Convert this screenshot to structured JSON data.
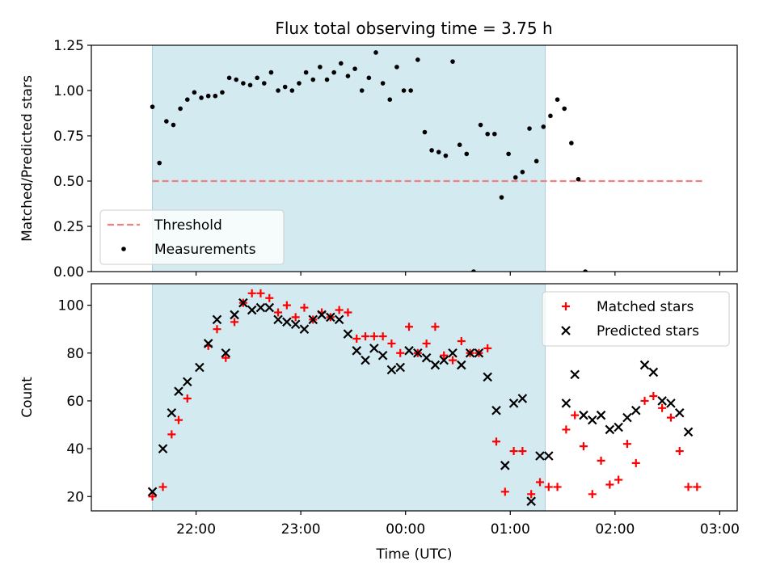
{
  "chart_data": [
    {
      "type": "scatter",
      "title": "Flux total observing time = 3.75 h",
      "xlabel": "",
      "ylabel": "Matched/Predicted stars",
      "ylim": [
        0.0,
        1.25
      ],
      "yticks": [
        "0.00",
        "0.25",
        "0.50",
        "0.75",
        "1.00",
        "1.25"
      ],
      "xticks": [
        "22:00",
        "23:00",
        "00:00",
        "01:00",
        "02:00",
        "03:00"
      ],
      "shaded_span": {
        "start": "21:35",
        "end": "01:20",
        "color": "#d3eaf1"
      },
      "threshold": {
        "name": "Threshold",
        "value": 0.5,
        "start": "21:35",
        "end": "02:50",
        "color": "#f08080"
      },
      "legend": {
        "position": "lower-left",
        "entries": [
          "Threshold",
          "Measurements"
        ]
      },
      "series": [
        {
          "name": "Measurements",
          "marker": "dot",
          "color": "#000000",
          "points": [
            [
              "21:35",
              0.91
            ],
            [
              "21:39",
              0.6
            ],
            [
              "21:43",
              0.83
            ],
            [
              "21:47",
              0.81
            ],
            [
              "21:51",
              0.9
            ],
            [
              "21:55",
              0.95
            ],
            [
              "21:59",
              0.99
            ],
            [
              "22:03",
              0.96
            ],
            [
              "22:07",
              0.97
            ],
            [
              "22:11",
              0.97
            ],
            [
              "22:15",
              0.99
            ],
            [
              "22:19",
              1.07
            ],
            [
              "22:23",
              1.06
            ],
            [
              "22:27",
              1.04
            ],
            [
              "22:31",
              1.03
            ],
            [
              "22:35",
              1.07
            ],
            [
              "22:39",
              1.04
            ],
            [
              "22:43",
              1.1
            ],
            [
              "22:47",
              1.0
            ],
            [
              "22:51",
              1.02
            ],
            [
              "22:55",
              1.0
            ],
            [
              "22:59",
              1.04
            ],
            [
              "23:03",
              1.1
            ],
            [
              "23:07",
              1.06
            ],
            [
              "23:11",
              1.13
            ],
            [
              "23:15",
              1.06
            ],
            [
              "23:19",
              1.1
            ],
            [
              "23:23",
              1.15
            ],
            [
              "23:27",
              1.08
            ],
            [
              "23:31",
              1.12
            ],
            [
              "23:35",
              1.0
            ],
            [
              "23:39",
              1.07
            ],
            [
              "23:43",
              1.21
            ],
            [
              "23:47",
              1.04
            ],
            [
              "23:51",
              0.95
            ],
            [
              "23:55",
              1.13
            ],
            [
              "23:59",
              1.0
            ],
            [
              "00:03",
              1.0
            ],
            [
              "00:07",
              1.17
            ],
            [
              "00:11",
              0.77
            ],
            [
              "00:15",
              0.67
            ],
            [
              "00:19",
              0.66
            ],
            [
              "00:23",
              0.64
            ],
            [
              "00:27",
              1.16
            ],
            [
              "00:31",
              0.7
            ],
            [
              "00:35",
              0.65
            ],
            [
              "00:39",
              0.0
            ],
            [
              "00:43",
              0.81
            ],
            [
              "00:47",
              0.76
            ],
            [
              "00:51",
              0.76
            ],
            [
              "00:55",
              0.41
            ],
            [
              "00:59",
              0.65
            ],
            [
              "01:03",
              0.52
            ],
            [
              "01:07",
              0.55
            ],
            [
              "01:11",
              0.79
            ],
            [
              "01:15",
              0.61
            ],
            [
              "01:19",
              0.8
            ],
            [
              "01:23",
              0.86
            ],
            [
              "01:27",
              0.95
            ],
            [
              "01:31",
              0.9
            ],
            [
              "01:35",
              0.71
            ],
            [
              "01:39",
              0.51
            ],
            [
              "01:43",
              0.0
            ]
          ]
        }
      ]
    },
    {
      "type": "scatter",
      "title": "",
      "xlabel": "Time (UTC)",
      "ylabel": "Count",
      "ylim": [
        14,
        109
      ],
      "yticks": [
        "20",
        "40",
        "60",
        "80",
        "100"
      ],
      "xticks": [
        "22:00",
        "23:00",
        "00:00",
        "01:00",
        "02:00",
        "03:00"
      ],
      "shaded_span": {
        "start": "21:35",
        "end": "01:20",
        "color": "#d3eaf1"
      },
      "legend": {
        "position": "upper-right",
        "entries": [
          "Matched stars",
          "Predicted stars"
        ]
      },
      "series": [
        {
          "name": "Matched stars",
          "marker": "plus",
          "color": "#ff0000",
          "points": [
            [
              "21:35",
              20
            ],
            [
              "21:41",
              24
            ],
            [
              "21:46",
              46
            ],
            [
              "21:50",
              52
            ],
            [
              "21:55",
              61
            ],
            [
              "22:07",
              83
            ],
            [
              "22:12",
              90
            ],
            [
              "22:17",
              78
            ],
            [
              "22:22",
              93
            ],
            [
              "22:27",
              101
            ],
            [
              "22:32",
              105
            ],
            [
              "22:37",
              105
            ],
            [
              "22:42",
              103
            ],
            [
              "22:47",
              97
            ],
            [
              "22:52",
              100
            ],
            [
              "22:57",
              95
            ],
            [
              "23:02",
              99
            ],
            [
              "23:07",
              94
            ],
            [
              "23:12",
              97
            ],
            [
              "23:17",
              95
            ],
            [
              "23:22",
              98
            ],
            [
              "23:27",
              97
            ],
            [
              "23:32",
              86
            ],
            [
              "23:37",
              87
            ],
            [
              "23:42",
              87
            ],
            [
              "23:47",
              87
            ],
            [
              "23:52",
              84
            ],
            [
              "23:57",
              80
            ],
            [
              "00:02",
              91
            ],
            [
              "00:07",
              80
            ],
            [
              "00:12",
              84
            ],
            [
              "00:17",
              91
            ],
            [
              "00:22",
              79
            ],
            [
              "00:27",
              77
            ],
            [
              "00:32",
              85
            ],
            [
              "00:37",
              80
            ],
            [
              "00:42",
              80
            ],
            [
              "00:47",
              82
            ],
            [
              "00:52",
              43
            ],
            [
              "00:57",
              22
            ],
            [
              "01:02",
              39
            ],
            [
              "01:07",
              39
            ],
            [
              "01:12",
              21
            ],
            [
              "01:17",
              26
            ],
            [
              "01:22",
              24
            ],
            [
              "01:27",
              24
            ],
            [
              "01:32",
              48
            ],
            [
              "01:37",
              54
            ],
            [
              "01:42",
              41
            ],
            [
              "01:47",
              21
            ],
            [
              "01:52",
              35
            ],
            [
              "01:57",
              25
            ],
            [
              "02:02",
              27
            ],
            [
              "02:07",
              42
            ],
            [
              "02:12",
              34
            ],
            [
              "02:17",
              60
            ],
            [
              "02:22",
              62
            ],
            [
              "02:27",
              57
            ],
            [
              "02:32",
              53
            ],
            [
              "02:37",
              39
            ],
            [
              "02:42",
              24
            ],
            [
              "02:47",
              24
            ]
          ]
        },
        {
          "name": "Predicted stars",
          "marker": "x",
          "color": "#000000",
          "points": [
            [
              "21:35",
              22
            ],
            [
              "21:41",
              40
            ],
            [
              "21:46",
              55
            ],
            [
              "21:50",
              64
            ],
            [
              "21:55",
              68
            ],
            [
              "22:02",
              74
            ],
            [
              "22:07",
              84
            ],
            [
              "22:12",
              94
            ],
            [
              "22:17",
              80
            ],
            [
              "22:22",
              96
            ],
            [
              "22:27",
              101
            ],
            [
              "22:32",
              98
            ],
            [
              "22:37",
              99
            ],
            [
              "22:42",
              99
            ],
            [
              "22:47",
              94
            ],
            [
              "22:52",
              93
            ],
            [
              "22:57",
              92
            ],
            [
              "23:02",
              90
            ],
            [
              "23:07",
              94
            ],
            [
              "23:12",
              96
            ],
            [
              "23:17",
              95
            ],
            [
              "23:22",
              94
            ],
            [
              "23:27",
              88
            ],
            [
              "23:32",
              81
            ],
            [
              "23:37",
              77
            ],
            [
              "23:42",
              82
            ],
            [
              "23:47",
              79
            ],
            [
              "23:52",
              73
            ],
            [
              "23:57",
              74
            ],
            [
              "00:02",
              81
            ],
            [
              "00:07",
              80
            ],
            [
              "00:12",
              78
            ],
            [
              "00:17",
              75
            ],
            [
              "00:22",
              77
            ],
            [
              "00:27",
              80
            ],
            [
              "00:32",
              75
            ],
            [
              "00:37",
              80
            ],
            [
              "00:42",
              80
            ],
            [
              "00:47",
              70
            ],
            [
              "00:52",
              56
            ],
            [
              "00:57",
              33
            ],
            [
              "01:02",
              59
            ],
            [
              "01:07",
              61
            ],
            [
              "01:12",
              18
            ],
            [
              "01:17",
              37
            ],
            [
              "01:22",
              37
            ],
            [
              "01:32",
              59
            ],
            [
              "01:37",
              71
            ],
            [
              "01:42",
              54
            ],
            [
              "01:47",
              52
            ],
            [
              "01:52",
              54
            ],
            [
              "01:57",
              48
            ],
            [
              "02:02",
              49
            ],
            [
              "02:07",
              53
            ],
            [
              "02:12",
              56
            ],
            [
              "02:17",
              75
            ],
            [
              "02:22",
              72
            ],
            [
              "02:27",
              60
            ],
            [
              "02:32",
              59
            ],
            [
              "02:37",
              55
            ],
            [
              "02:42",
              47
            ]
          ]
        }
      ]
    }
  ]
}
